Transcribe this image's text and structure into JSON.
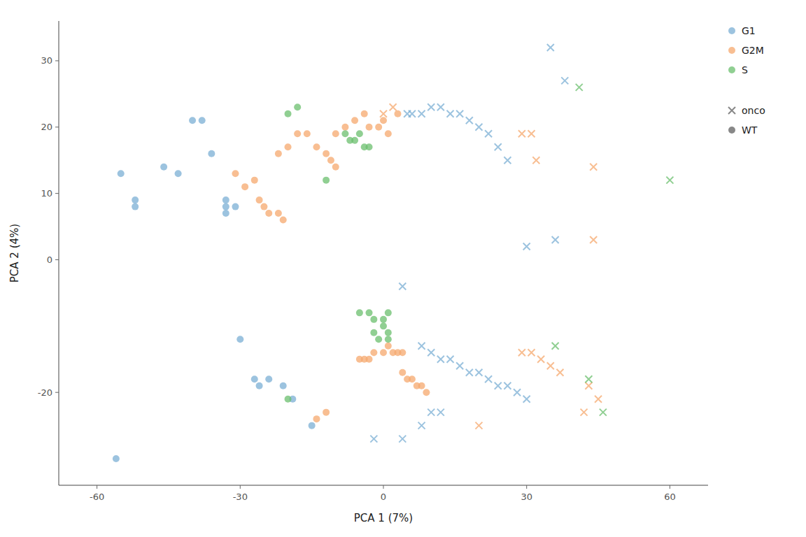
{
  "chart_data": {
    "type": "scatter",
    "xlabel": "PCA 1 (7%)",
    "ylabel": "PCA 2 (4%)",
    "xlim": [
      -68,
      68
    ],
    "ylim": [
      -34,
      36
    ],
    "xticks": [
      -60,
      -30,
      0,
      30,
      60
    ],
    "yticks": [
      -20,
      0,
      10,
      20,
      30
    ],
    "grid": false,
    "legend": "upper right",
    "series": [
      {
        "name": "G1",
        "color": "#7bafd4",
        "marker": "circle",
        "x": [
          -55,
          -52,
          -52,
          -46,
          -43,
          -40,
          -38,
          -36,
          -33,
          -33,
          -33,
          -31,
          -30,
          -27,
          -26,
          -24,
          -21,
          -19,
          -15,
          -56
        ],
        "values": [
          13,
          8,
          9,
          14,
          13,
          21,
          21,
          16,
          9,
          8,
          7,
          8,
          -12,
          -18,
          -19,
          -18,
          -19,
          -21,
          -25,
          -30
        ]
      },
      {
        "name": "G2M",
        "color": "#f5a86e",
        "marker": "circle",
        "x": [
          -31,
          -29,
          -27,
          -26,
          -25,
          -24,
          -22,
          -21,
          -22,
          -20,
          -18,
          -16,
          -14,
          -12,
          -11,
          -10,
          -10,
          -8,
          -6,
          -4,
          -3,
          -1,
          0,
          1,
          -5,
          -4,
          -3,
          -2,
          0,
          1,
          2,
          3,
          4,
          4,
          5,
          6,
          7,
          8,
          9,
          -14,
          -12,
          3
        ],
        "values": [
          13,
          11,
          12,
          9,
          8,
          7,
          7,
          6,
          16,
          17,
          19,
          19,
          17,
          16,
          15,
          14,
          19,
          20,
          21,
          22,
          20,
          20,
          21,
          19,
          -15,
          -15,
          -15,
          -14,
          -14,
          -13,
          -14,
          -14,
          -14,
          -17,
          -18,
          -18,
          -19,
          -19,
          -20,
          -24,
          -23,
          22
        ]
      },
      {
        "name": "S",
        "color": "#6bbf6e",
        "marker": "circle",
        "x": [
          -20,
          -18,
          -12,
          -8,
          -7,
          -6,
          -5,
          -4,
          -3,
          -5,
          -3,
          -2,
          0,
          1,
          -2,
          0,
          1,
          -1,
          1,
          -20
        ],
        "values": [
          22,
          23,
          12,
          19,
          18,
          18,
          19,
          17,
          17,
          -8,
          -8,
          -9,
          -9,
          -8,
          -11,
          -10,
          -11,
          -12,
          -12,
          -21
        ]
      },
      {
        "name": "G1",
        "color": "#7bafd4",
        "marker": "cross",
        "x": [
          5,
          6,
          8,
          10,
          12,
          14,
          16,
          18,
          20,
          22,
          24,
          26,
          35,
          38,
          36,
          8,
          10,
          12,
          14,
          16,
          18,
          20,
          22,
          24,
          26,
          28,
          30,
          10,
          12,
          -2,
          4,
          8,
          4,
          30
        ],
        "values": [
          22,
          22,
          22,
          23,
          23,
          22,
          22,
          21,
          20,
          19,
          17,
          15,
          32,
          27,
          3,
          -13,
          -14,
          -15,
          -15,
          -16,
          -17,
          -17,
          -18,
          -19,
          -19,
          -20,
          -21,
          -23,
          -23,
          -27,
          -27,
          -25,
          -4,
          2
        ]
      },
      {
        "name": "G2M",
        "color": "#f5a86e",
        "marker": "cross",
        "x": [
          0,
          2,
          29,
          31,
          32,
          44,
          44,
          29,
          31,
          33,
          35,
          37,
          20,
          43,
          45,
          42
        ],
        "values": [
          22,
          23,
          19,
          19,
          15,
          14,
          3,
          -14,
          -14,
          -15,
          -16,
          -17,
          -25,
          -19,
          -21,
          -23
        ]
      },
      {
        "name": "S",
        "color": "#6bbf6e",
        "marker": "cross",
        "x": [
          41,
          60,
          36,
          43,
          46
        ],
        "values": [
          26,
          12,
          -13,
          -18,
          -23
        ]
      }
    ],
    "shape_legend": [
      {
        "name": "onco",
        "marker": "cross",
        "color": "#888888"
      },
      {
        "name": "WT",
        "marker": "circle",
        "color": "#888888"
      }
    ]
  }
}
